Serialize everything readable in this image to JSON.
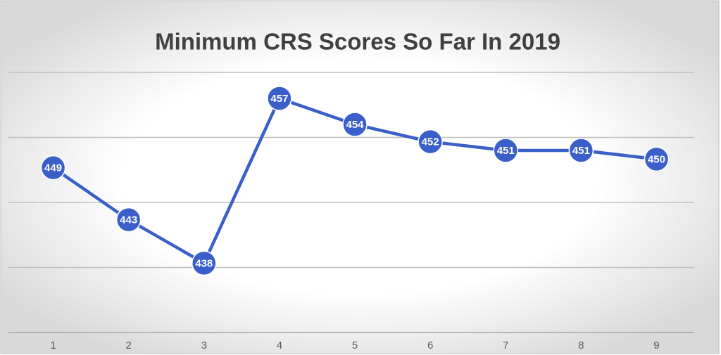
{
  "chart_data": {
    "type": "line",
    "title": "Minimum CRS Scores So Far In 2019",
    "categories": [
      "1",
      "2",
      "3",
      "4",
      "5",
      "6",
      "7",
      "8",
      "9"
    ],
    "series": [
      {
        "color": "#3a5fc8",
        "values": [
          449,
          443,
          438,
          457,
          454,
          452,
          451,
          451,
          450
        ]
      }
    ],
    "ylim": [
      430,
      460
    ],
    "yticks": [
      430,
      437.5,
      445,
      452.5,
      460
    ],
    "grid": true,
    "data_labels": true
  }
}
